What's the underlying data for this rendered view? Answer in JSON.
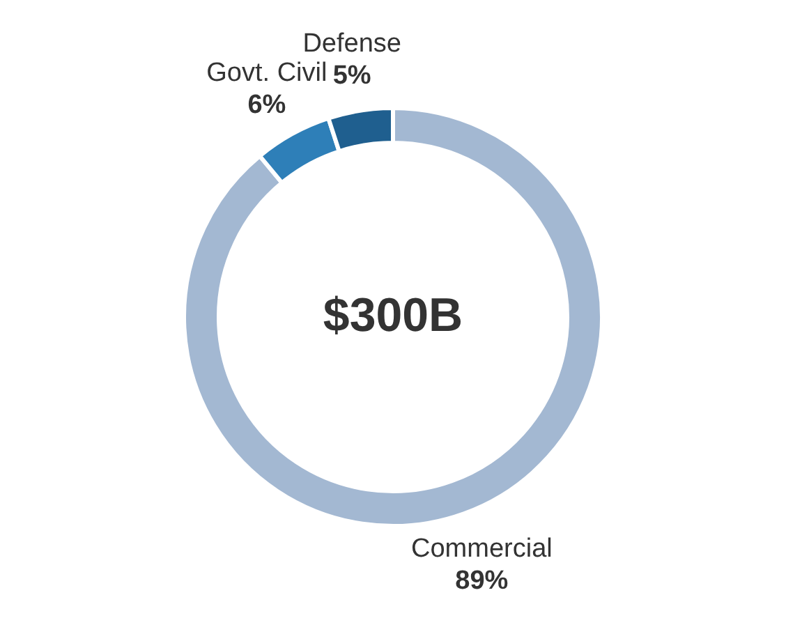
{
  "chart_data": {
    "type": "donut",
    "categories": [
      "Commercial",
      "Govt. Civil",
      "Defense"
    ],
    "values": [
      89,
      6,
      5
    ],
    "colors": [
      "#a3b8d2",
      "#2e7fb8",
      "#1f5f8f"
    ],
    "value_labels": [
      "89%",
      "6%",
      "5%"
    ],
    "annotations": [
      "$300B"
    ]
  }
}
